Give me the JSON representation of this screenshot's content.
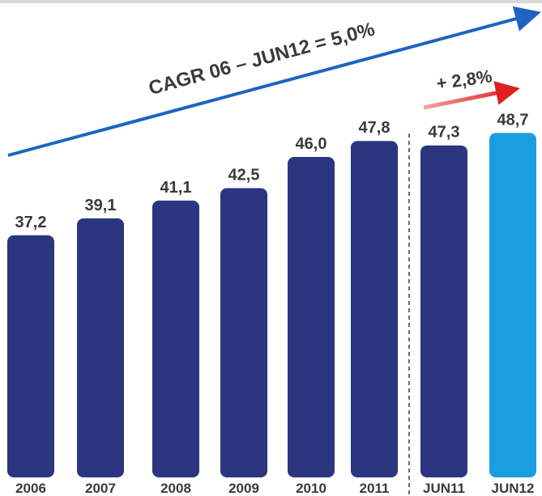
{
  "chart_data": {
    "type": "bar",
    "categories": [
      "2006",
      "2007",
      "2008",
      "2009",
      "2010",
      "2011",
      "JUN11",
      "JUN12"
    ],
    "values": [
      37.2,
      39.1,
      41.1,
      42.5,
      46.0,
      47.8,
      47.3,
      48.7
    ],
    "value_labels": [
      "37,2",
      "39,1",
      "41,1",
      "42,5",
      "46,0",
      "47,8",
      "47,3",
      "48,7"
    ],
    "colors": [
      "#2b3580",
      "#2b3580",
      "#2b3580",
      "#2b3580",
      "#2b3580",
      "#2b3580",
      "#2b3580",
      "#1a9ee0"
    ],
    "ylim": [
      10,
      50
    ],
    "annotations": [
      "CAGR 06 – JUN12 = 5,0%",
      "+ 2,8%"
    ]
  }
}
